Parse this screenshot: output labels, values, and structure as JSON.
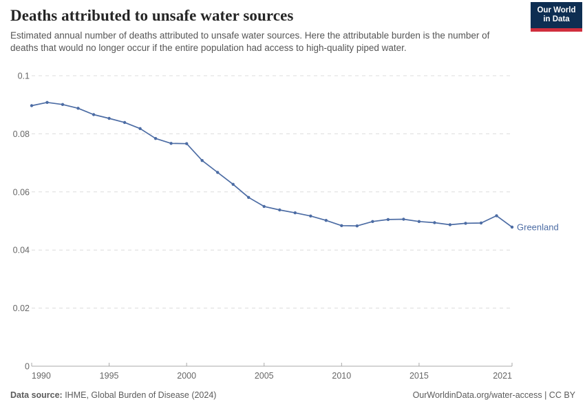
{
  "header": {
    "title": "Deaths attributed to unsafe water sources",
    "subtitle": "Estimated annual number of deaths attributed to unsafe water sources. Here the attributable burden is the number of deaths that would no longer occur if the entire population had access to high-quality piped water.",
    "logo": {
      "line1": "Our World",
      "line2": "in Data",
      "bg_color": "#0e2e52",
      "stripe_color": "#d02e3d"
    }
  },
  "chart_data": {
    "type": "line",
    "title": "Deaths attributed to unsafe water sources",
    "xlabel": "",
    "ylabel": "",
    "xlim": [
      1990,
      2021
    ],
    "ylim": [
      0,
      0.1
    ],
    "xticks": [
      1990,
      1995,
      2000,
      2005,
      2010,
      2015,
      2021
    ],
    "yticks": [
      0,
      0.02,
      0.04,
      0.06,
      0.08,
      0.1
    ],
    "ytick_labels": [
      "0",
      "0.02",
      "0.04",
      "0.06",
      "0.08",
      "0.1"
    ],
    "grid": "horizontal-dashed",
    "legend_position": "end-of-line-label",
    "x": [
      1990,
      1991,
      1992,
      1993,
      1994,
      1995,
      1996,
      1997,
      1998,
      1999,
      2000,
      2001,
      2002,
      2003,
      2004,
      2005,
      2006,
      2007,
      2008,
      2009,
      2010,
      2011,
      2012,
      2013,
      2014,
      2015,
      2016,
      2017,
      2018,
      2019,
      2020,
      2021
    ],
    "series": [
      {
        "name": "Greenland",
        "color": "#4c6ca4",
        "values": [
          0.0897,
          0.0908,
          0.0901,
          0.0888,
          0.0866,
          0.0853,
          0.0839,
          0.0818,
          0.0784,
          0.0767,
          0.0766,
          0.0708,
          0.0667,
          0.0626,
          0.0581,
          0.055,
          0.0538,
          0.0528,
          0.0517,
          0.0502,
          0.0484,
          0.0483,
          0.0498,
          0.0505,
          0.0506,
          0.0498,
          0.0494,
          0.0487,
          0.0492,
          0.0493,
          0.0518,
          0.0479
        ]
      }
    ]
  },
  "footer": {
    "data_source_label": "Data source:",
    "data_source_value": " IHME, Global Burden of Disease (2024)",
    "attribution": "OurWorldinData.org/water-access | CC BY"
  }
}
